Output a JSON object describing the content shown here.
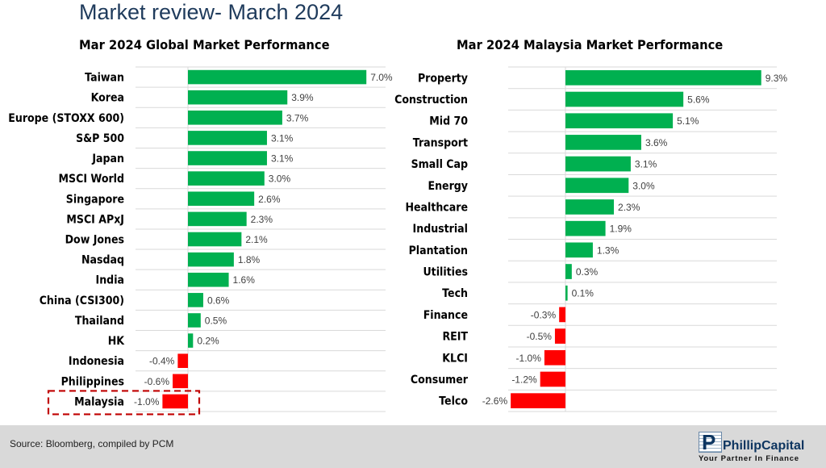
{
  "page": {
    "title": "Market review- March 2024",
    "source": "Source: Bloomberg, compiled by PCM"
  },
  "logo": {
    "mark": "P",
    "name": "PhillipCapital",
    "tagline": "Your Partner In Finance"
  },
  "colors": {
    "positive": "#00b050",
    "negative": "#ff0000",
    "highlight_box": "#c00000"
  },
  "chart_data": [
    {
      "type": "bar",
      "orientation": "horizontal",
      "title": "Mar 2024 Global Market Performance",
      "categories": [
        "Taiwan",
        "Korea",
        "Europe (STOXX 600)",
        "S&P 500",
        "Japan",
        "MSCI World",
        "Singapore",
        "MSCI APxJ",
        "Dow Jones",
        "Nasdaq",
        "India",
        "China (CSI300)",
        "Thailand",
        "HK",
        "Indonesia",
        "Philippines",
        "Malaysia"
      ],
      "values": [
        7.0,
        3.9,
        3.7,
        3.1,
        3.1,
        3.0,
        2.6,
        2.3,
        2.1,
        1.8,
        1.6,
        0.6,
        0.5,
        0.2,
        -0.4,
        -0.6,
        -1.0
      ],
      "data_labels": [
        "7.0%",
        "3.9%",
        "3.7%",
        "3.1%",
        "3.1%",
        "3.0%",
        "2.6%",
        "2.3%",
        "2.1%",
        "1.8%",
        "1.6%",
        "0.6%",
        "0.5%",
        "0.2%",
        "-0.4%",
        "-0.6%",
        "-1.0%"
      ],
      "highlighted": "Malaysia",
      "unit": "%",
      "grid": "horizontal",
      "legend": "none"
    },
    {
      "type": "bar",
      "orientation": "horizontal",
      "title": "Mar 2024 Malaysia Market Performance",
      "categories": [
        "Property",
        "Construction",
        "Mid 70",
        "Transport",
        "Small Cap",
        "Energy",
        "Healthcare",
        "Industrial",
        "Plantation",
        "Utilities",
        "Tech",
        "Finance",
        "REIT",
        "KLCI",
        "Consumer",
        "Telco"
      ],
      "values": [
        9.3,
        5.6,
        5.1,
        3.6,
        3.1,
        3.0,
        2.3,
        1.9,
        1.3,
        0.3,
        0.1,
        -0.3,
        -0.5,
        -1.0,
        -1.2,
        -2.6
      ],
      "data_labels": [
        "9.3%",
        "5.6%",
        "5.1%",
        "3.6%",
        "3.1%",
        "3.0%",
        "2.3%",
        "1.9%",
        "1.3%",
        "0.3%",
        "0.1%",
        "-0.3%",
        "-0.5%",
        "-1.0%",
        "-1.2%",
        "-2.6%"
      ],
      "unit": "%",
      "grid": "horizontal",
      "legend": "none"
    }
  ]
}
